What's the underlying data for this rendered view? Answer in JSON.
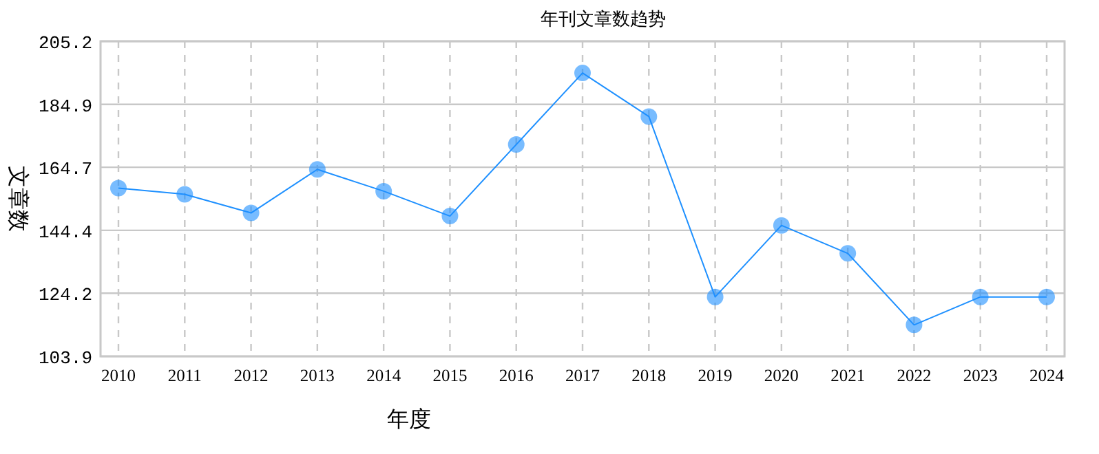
{
  "chart_data": {
    "type": "line",
    "title": "年刊文章数趋势",
    "xlabel": "年度",
    "ylabel": "文章数",
    "categories": [
      "2010",
      "2011",
      "2012",
      "2013",
      "2014",
      "2015",
      "2016",
      "2017",
      "2018",
      "2019",
      "2020",
      "2021",
      "2022",
      "2023",
      "2024"
    ],
    "series": [
      {
        "color": "#1e90ff",
        "values": [
          158,
          156,
          150,
          164,
          157,
          149,
          172,
          195,
          181,
          123,
          146,
          137,
          114,
          123,
          123
        ]
      }
    ],
    "ylim": [
      103.9,
      205.2
    ],
    "yticks": [
      103.9,
      124.2,
      144.4,
      164.7,
      184.9,
      205.2
    ],
    "grid": true,
    "marker": "circle",
    "line_style": "solid"
  }
}
